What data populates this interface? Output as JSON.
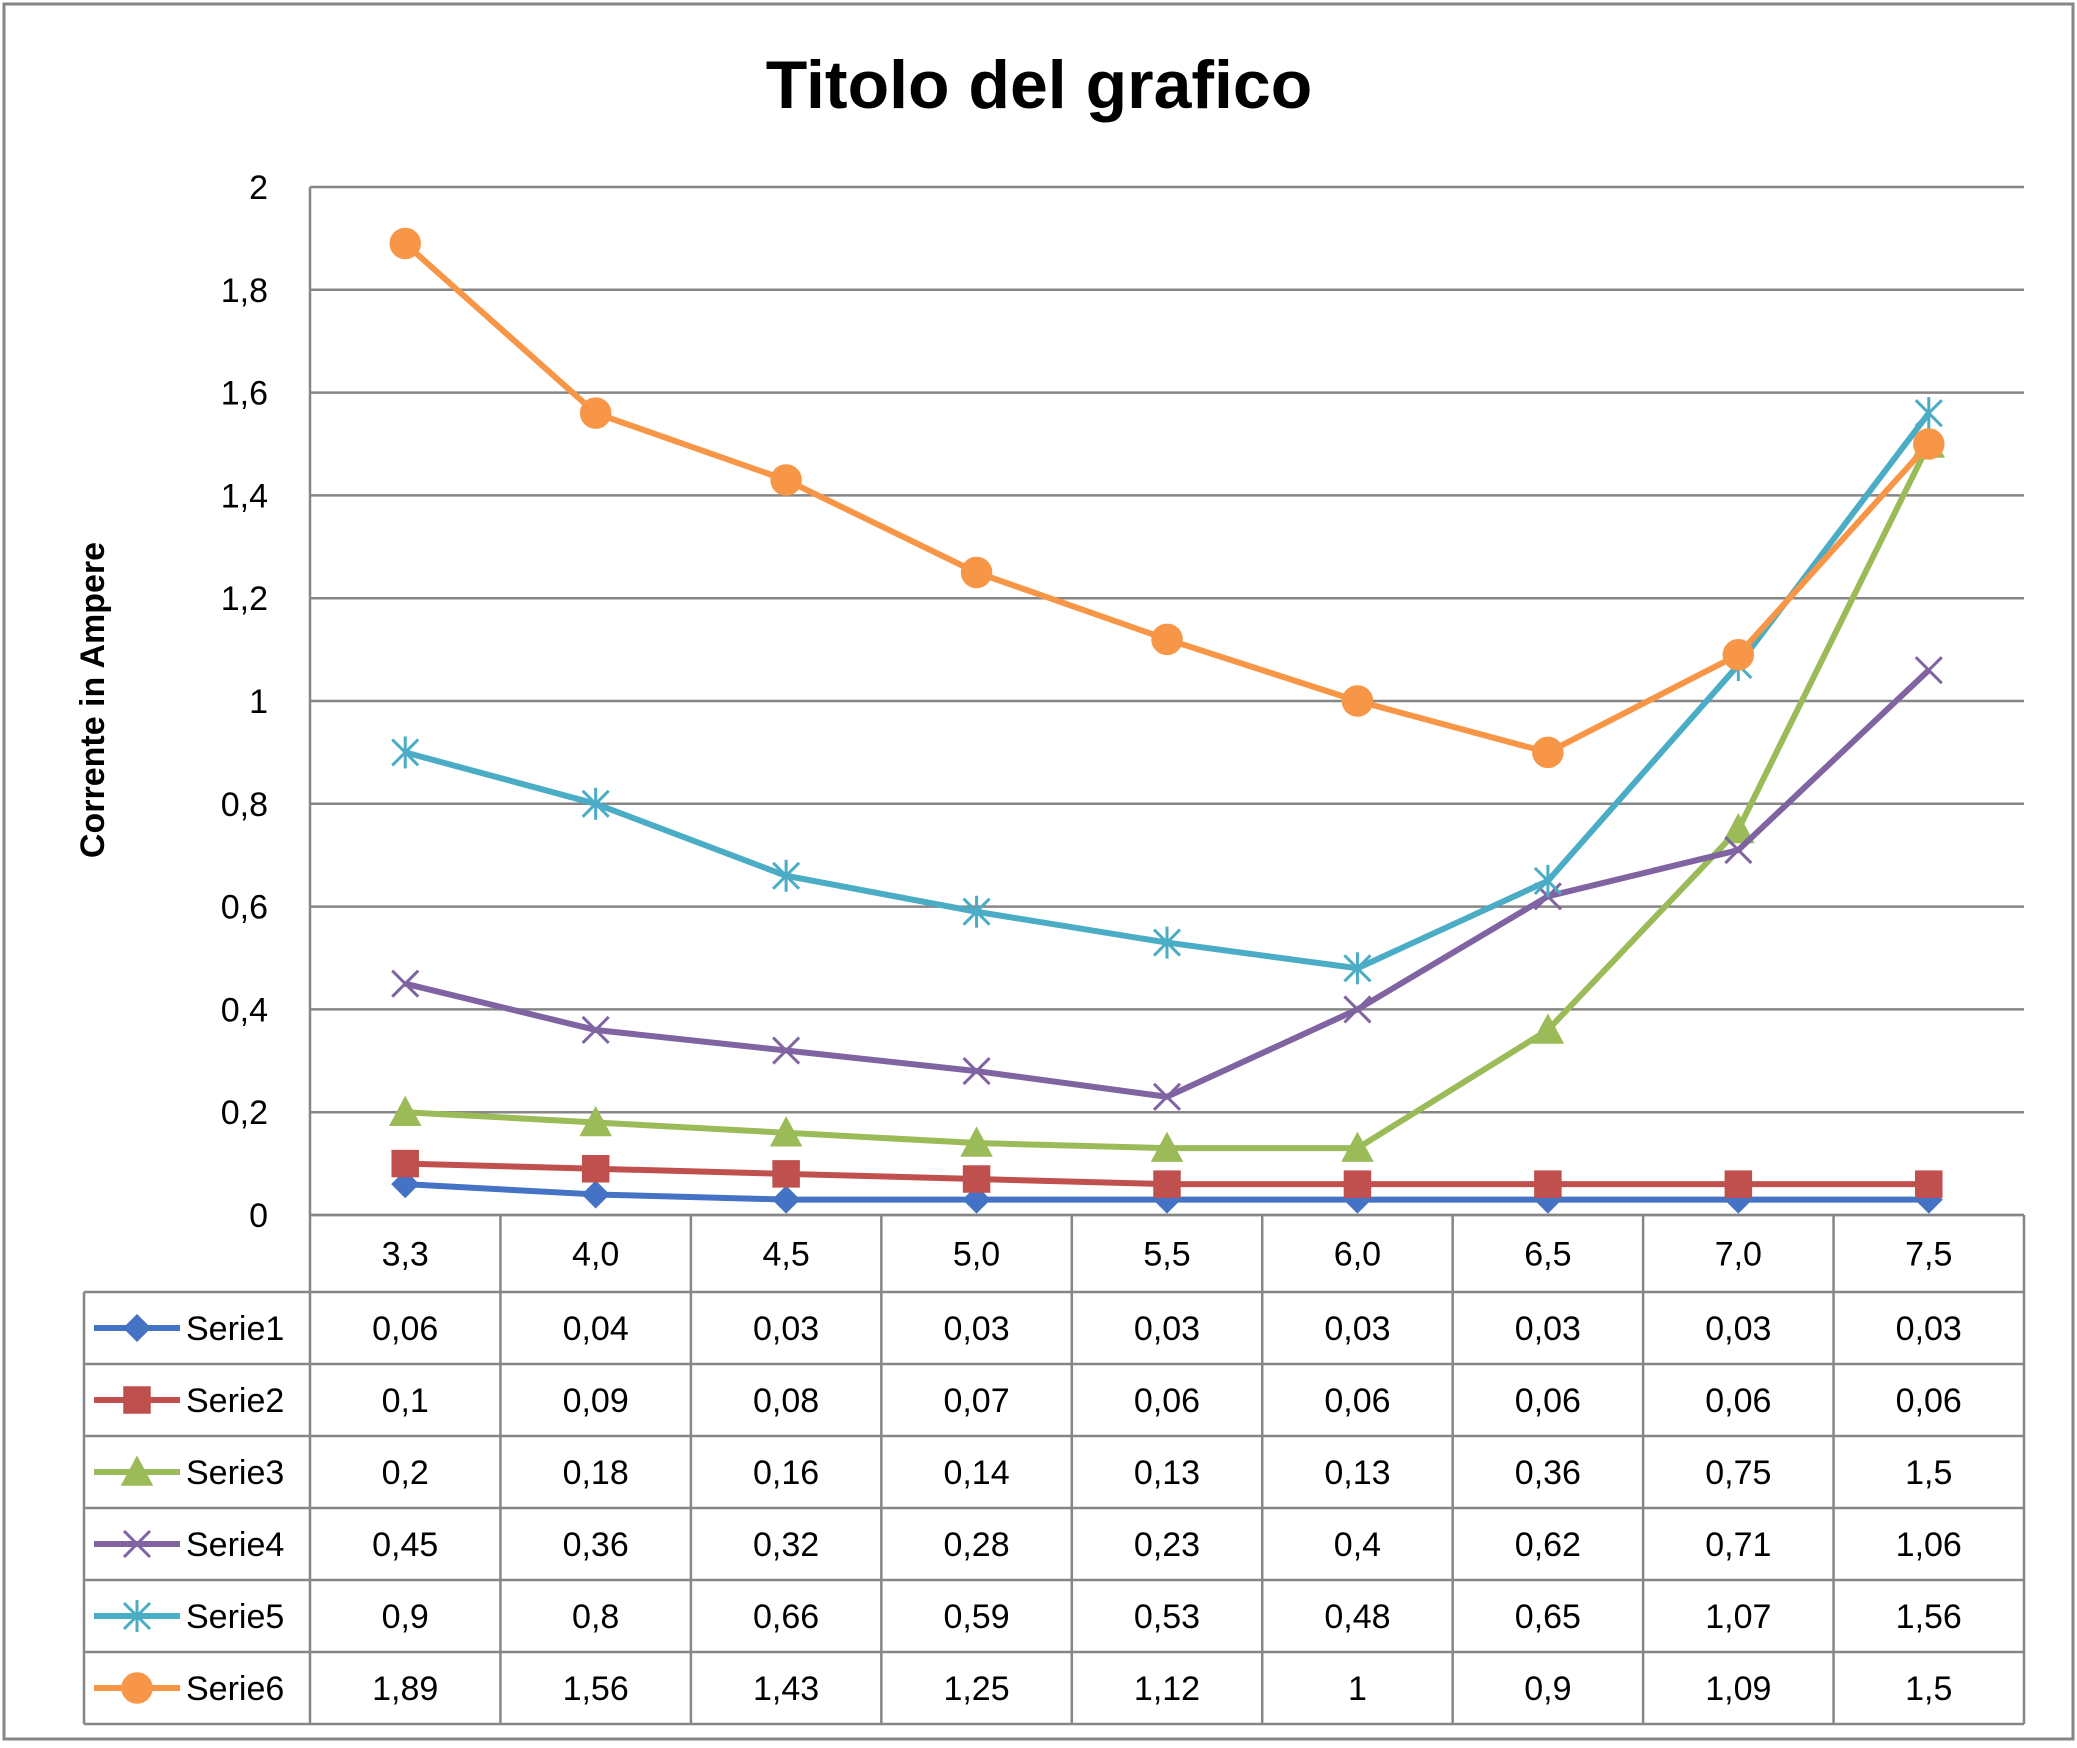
{
  "chart_data": {
    "type": "line",
    "title": "Titolo del grafico",
    "ylabel": "Corrente in Ampere",
    "xlabel": "",
    "categories": [
      "3,3",
      "4,0",
      "4,5",
      "5,0",
      "5,5",
      "6,0",
      "6,5",
      "7,0",
      "7,5"
    ],
    "ylim": [
      0,
      2
    ],
    "yticks": [
      0,
      0.2,
      0.4,
      0.6,
      0.8,
      1,
      1.2,
      1.4,
      1.6,
      1.8,
      2
    ],
    "ytick_labels": [
      "0",
      "0,2",
      "0,4",
      "0,6",
      "0,8",
      "1",
      "1,2",
      "1,4",
      "1,6",
      "1,8",
      "2"
    ],
    "grid": true,
    "legend": "data-table-below",
    "series": [
      {
        "name": "Serie1",
        "color": "#4472C4",
        "marker": "diamond",
        "values": [
          0.06,
          0.04,
          0.03,
          0.03,
          0.03,
          0.03,
          0.03,
          0.03,
          0.03
        ],
        "labels": [
          "0,06",
          "0,04",
          "0,03",
          "0,03",
          "0,03",
          "0,03",
          "0,03",
          "0,03",
          "0,03"
        ]
      },
      {
        "name": "Serie2",
        "color": "#C0504D",
        "marker": "square",
        "values": [
          0.1,
          0.09,
          0.08,
          0.07,
          0.06,
          0.06,
          0.06,
          0.06,
          0.06
        ],
        "labels": [
          "0,1",
          "0,09",
          "0,08",
          "0,07",
          "0,06",
          "0,06",
          "0,06",
          "0,06",
          "0,06"
        ]
      },
      {
        "name": "Serie3",
        "color": "#9BBB59",
        "marker": "triangle",
        "values": [
          0.2,
          0.18,
          0.16,
          0.14,
          0.13,
          0.13,
          0.36,
          0.75,
          1.5
        ],
        "labels": [
          "0,2",
          "0,18",
          "0,16",
          "0,14",
          "0,13",
          "0,13",
          "0,36",
          "0,75",
          "1,5"
        ]
      },
      {
        "name": "Serie4",
        "color": "#8064A2",
        "marker": "x",
        "values": [
          0.45,
          0.36,
          0.32,
          0.28,
          0.23,
          0.4,
          0.62,
          0.71,
          1.06
        ],
        "labels": [
          "0,45",
          "0,36",
          "0,32",
          "0,28",
          "0,23",
          "0,4",
          "0,62",
          "0,71",
          "1,06"
        ]
      },
      {
        "name": "Serie5",
        "color": "#4BACC6",
        "marker": "star",
        "values": [
          0.9,
          0.8,
          0.66,
          0.59,
          0.53,
          0.48,
          0.65,
          1.07,
          1.56
        ],
        "labels": [
          "0,9",
          "0,8",
          "0,66",
          "0,59",
          "0,53",
          "0,48",
          "0,65",
          "1,07",
          "1,56"
        ]
      },
      {
        "name": "Serie6",
        "color": "#F79646",
        "marker": "circle",
        "values": [
          1.89,
          1.56,
          1.43,
          1.25,
          1.12,
          1,
          0.9,
          1.09,
          1.5
        ],
        "labels": [
          "1,89",
          "1,56",
          "1,43",
          "1,25",
          "1,12",
          "1",
          "0,9",
          "1,09",
          "1,5"
        ]
      }
    ]
  }
}
